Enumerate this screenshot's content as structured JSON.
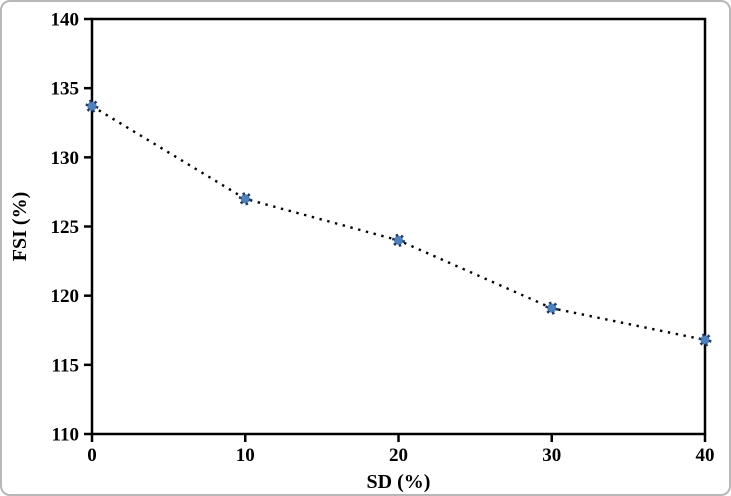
{
  "chart_data": {
    "type": "scatter",
    "title": "",
    "xlabel": "SD (%)",
    "ylabel": "FSI (%)",
    "x": [
      0,
      10,
      20,
      30,
      40
    ],
    "y": [
      133.7,
      127.0,
      124.0,
      119.1,
      116.8
    ],
    "xlim": [
      0,
      40
    ],
    "ylim": [
      110,
      140
    ],
    "xticks": [
      0,
      10,
      20,
      30,
      40
    ],
    "yticks": [
      110,
      115,
      120,
      125,
      130,
      135,
      140
    ],
    "grid": false,
    "legend": "none",
    "line_style": "dotted",
    "line_color": "#000000",
    "marker_fill": "#4f81bd",
    "marker_edge": "#1f3864",
    "axis_color": "#000000",
    "frame_border_color": "#b8b8b8"
  }
}
